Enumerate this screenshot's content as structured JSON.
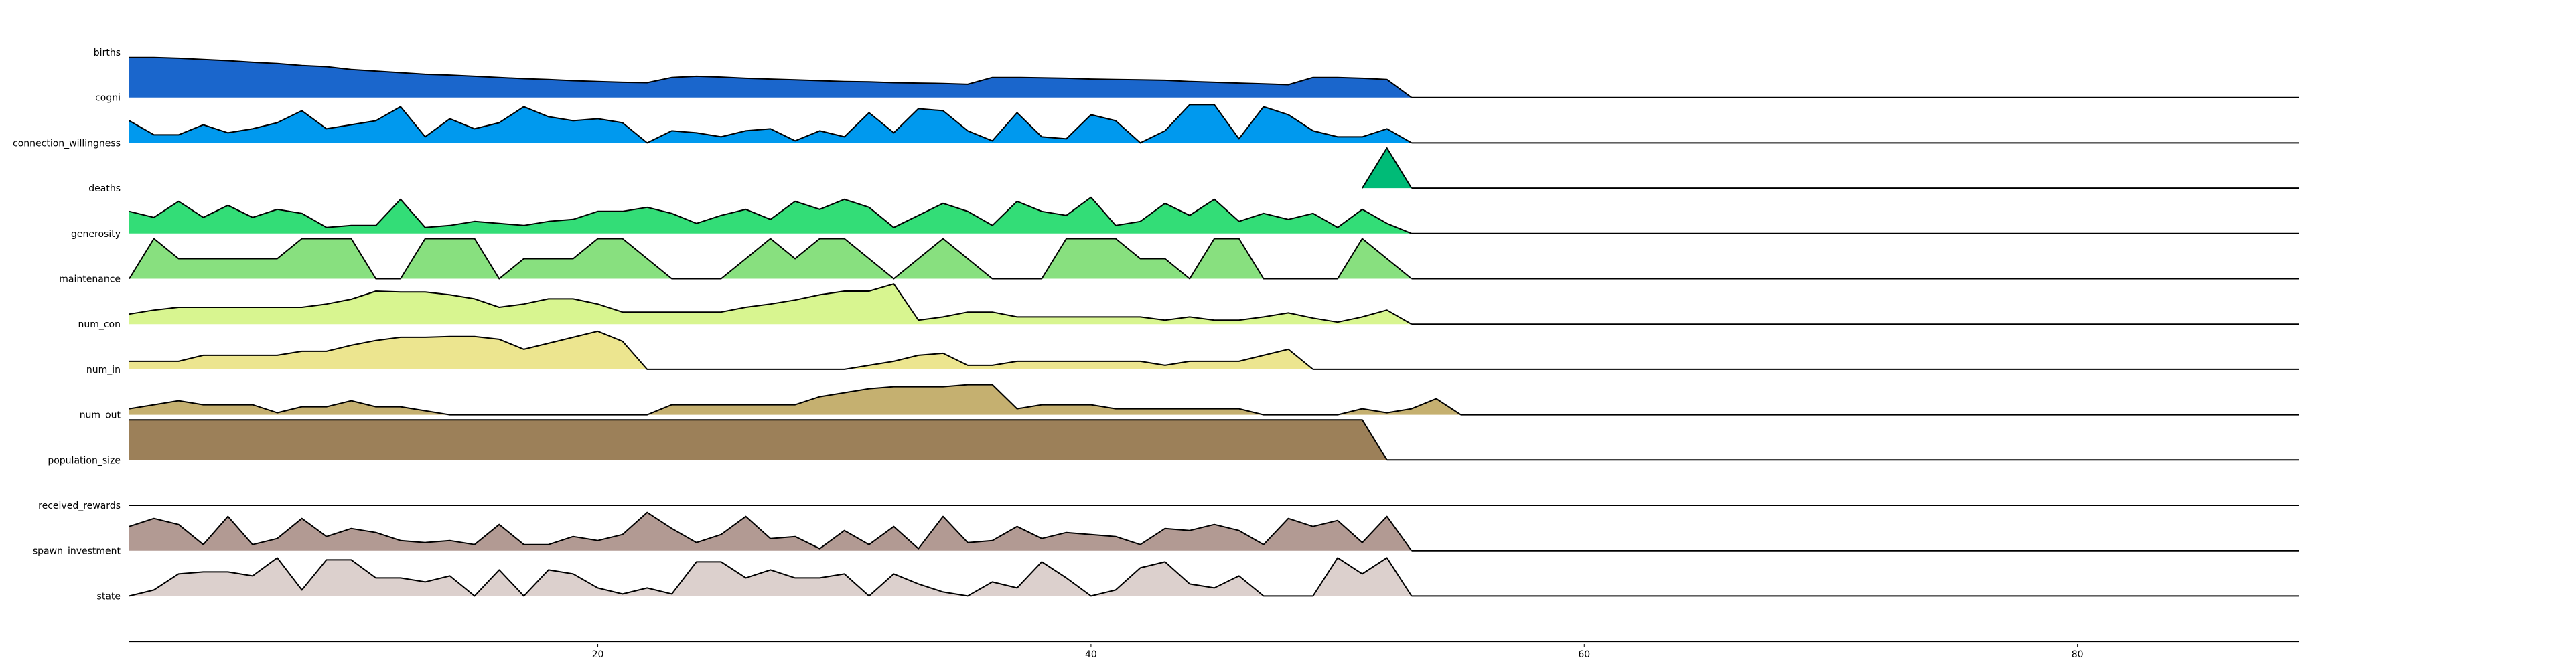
{
  "chart_data": {
    "type": "area",
    "title": "",
    "xlabel": "",
    "ylabel": "",
    "xlim": [
      1,
      89
    ],
    "x_ticks": [
      20,
      40,
      60,
      80
    ],
    "grid": false,
    "legend": "none",
    "series": [
      {
        "name": "births",
        "color": "#1a66cc",
        "x_start": 1,
        "values": [
          1.0,
          1.0,
          0.98,
          0.95,
          0.92,
          0.88,
          0.85,
          0.8,
          0.77,
          0.7,
          0.66,
          0.62,
          0.58,
          0.56,
          0.53,
          0.5,
          0.47,
          0.45,
          0.42,
          0.4,
          0.38,
          0.37,
          0.5,
          0.53,
          0.51,
          0.48,
          0.46,
          0.44,
          0.42,
          0.4,
          0.39,
          0.37,
          0.36,
          0.35,
          0.33,
          0.5,
          0.5,
          0.49,
          0.48,
          0.46,
          0.45,
          0.44,
          0.43,
          0.4,
          0.38,
          0.36,
          0.34,
          0.32,
          0.5,
          0.5,
          0.48,
          0.45,
          0.0
        ]
      },
      {
        "name": "cogni",
        "color": "#0099ee",
        "x_start": 1,
        "values": [
          0.55,
          0.2,
          0.2,
          0.45,
          0.25,
          0.35,
          0.5,
          0.8,
          0.35,
          0.45,
          0.55,
          0.9,
          0.15,
          0.6,
          0.35,
          0.5,
          0.9,
          0.65,
          0.55,
          0.6,
          0.5,
          0.0,
          0.3,
          0.25,
          0.15,
          0.3,
          0.35,
          0.05,
          0.3,
          0.15,
          0.75,
          0.25,
          0.85,
          0.8,
          0.3,
          0.05,
          0.75,
          0.15,
          0.1,
          0.7,
          0.55,
          0.0,
          0.3,
          0.95,
          0.95,
          0.1,
          0.9,
          0.7,
          0.3,
          0.15,
          0.15,
          0.35,
          0.0
        ]
      },
      {
        "name": "connection_willingness",
        "color": "#00bb77",
        "x_start": 51,
        "values": [
          0.0,
          1.0,
          0.0
        ]
      },
      {
        "name": "deaths",
        "color": "#33dd77",
        "x_start": 1,
        "values": [
          0.55,
          0.4,
          0.8,
          0.4,
          0.7,
          0.4,
          0.6,
          0.5,
          0.15,
          0.2,
          0.2,
          0.85,
          0.15,
          0.2,
          0.3,
          0.25,
          0.2,
          0.3,
          0.35,
          0.55,
          0.55,
          0.65,
          0.5,
          0.25,
          0.45,
          0.6,
          0.35,
          0.8,
          0.6,
          0.85,
          0.65,
          0.15,
          0.45,
          0.75,
          0.55,
          0.2,
          0.8,
          0.55,
          0.45,
          0.9,
          0.2,
          0.3,
          0.75,
          0.45,
          0.85,
          0.3,
          0.5,
          0.35,
          0.5,
          0.15,
          0.6,
          0.25,
          0.0
        ]
      },
      {
        "name": "generosity",
        "color": "#88e07f",
        "x_start": 1,
        "values": [
          0.0,
          1.0,
          0.5,
          0.5,
          0.5,
          0.5,
          0.5,
          1.0,
          1.0,
          1.0,
          0.0,
          0.0,
          1.0,
          1.0,
          1.0,
          0.0,
          0.5,
          0.5,
          0.5,
          1.0,
          1.0,
          0.5,
          0.0,
          0.0,
          0.0,
          0.5,
          1.0,
          0.5,
          1.0,
          1.0,
          0.5,
          0.0,
          0.5,
          1.0,
          0.5,
          0.0,
          0.0,
          0.0,
          1.0,
          1.0,
          1.0,
          0.5,
          0.5,
          0.0,
          1.0,
          1.0,
          0.0,
          0.0,
          0.0,
          0.0,
          1.0,
          0.5,
          0.0
        ]
      },
      {
        "name": "maintenance",
        "color": "#d8f590",
        "x_start": 1,
        "values": [
          0.25,
          0.35,
          0.42,
          0.42,
          0.42,
          0.42,
          0.42,
          0.42,
          0.5,
          0.62,
          0.82,
          0.8,
          0.8,
          0.73,
          0.63,
          0.42,
          0.5,
          0.63,
          0.63,
          0.5,
          0.3,
          0.3,
          0.3,
          0.3,
          0.3,
          0.42,
          0.5,
          0.6,
          0.73,
          0.82,
          0.82,
          1.0,
          0.1,
          0.18,
          0.3,
          0.3,
          0.18,
          0.18,
          0.18,
          0.18,
          0.18,
          0.18,
          0.1,
          0.18,
          0.1,
          0.1,
          0.18,
          0.28,
          0.15,
          0.05,
          0.18,
          0.35,
          0.0
        ]
      },
      {
        "name": "num_con",
        "color": "#ece58f",
        "x_start": 1,
        "values": [
          0.2,
          0.2,
          0.2,
          0.35,
          0.35,
          0.35,
          0.35,
          0.45,
          0.45,
          0.6,
          0.72,
          0.8,
          0.8,
          0.82,
          0.82,
          0.75,
          0.5,
          0.65,
          0.8,
          0.95,
          0.7,
          0.0,
          0.0,
          0.0,
          0.0,
          0.0,
          0.0,
          0.0,
          0.0,
          0.0,
          0.1,
          0.2,
          0.35,
          0.4,
          0.1,
          0.1,
          0.2,
          0.2,
          0.2,
          0.2,
          0.2,
          0.2,
          0.1,
          0.2,
          0.2,
          0.2,
          0.35,
          0.5,
          0.0
        ]
      },
      {
        "name": "num_in",
        "color": "#c5b070",
        "x_start": 1,
        "values": [
          0.15,
          0.25,
          0.35,
          0.25,
          0.25,
          0.25,
          0.05,
          0.2,
          0.2,
          0.35,
          0.2,
          0.2,
          0.1,
          0.0,
          0.0,
          0.0,
          0.0,
          0.0,
          0.0,
          0.0,
          0.0,
          0.0,
          0.25,
          0.25,
          0.25,
          0.25,
          0.25,
          0.25,
          0.45,
          0.55,
          0.65,
          0.7,
          0.7,
          0.7,
          0.75,
          0.75,
          0.15,
          0.25,
          0.25,
          0.25,
          0.15,
          0.15,
          0.15,
          0.15,
          0.15,
          0.15,
          0.0,
          0.0,
          0.0,
          0.0,
          0.15,
          0.05,
          0.15,
          0.4,
          0.0
        ]
      },
      {
        "name": "num_out",
        "color": "#9c8059",
        "x_start": 1,
        "values": [
          1.0,
          1.0,
          1.0,
          1.0,
          1.0,
          1.0,
          1.0,
          1.0,
          1.0,
          1.0,
          1.0,
          1.0,
          1.0,
          1.0,
          1.0,
          1.0,
          1.0,
          1.0,
          1.0,
          1.0,
          1.0,
          1.0,
          1.0,
          1.0,
          1.0,
          1.0,
          1.0,
          1.0,
          1.0,
          1.0,
          1.0,
          1.0,
          1.0,
          1.0,
          1.0,
          1.0,
          1.0,
          1.0,
          1.0,
          1.0,
          1.0,
          1.0,
          1.0,
          1.0,
          1.0,
          1.0,
          1.0,
          1.0,
          1.0,
          1.0,
          1.0,
          0.0
        ]
      },
      {
        "name": "population_size",
        "color": "#b29a93",
        "x_start": 1,
        "values": []
      },
      {
        "name": "received_rewards",
        "color": "#b29a93",
        "x_start": 1,
        "values": [
          0.6,
          0.8,
          0.65,
          0.15,
          0.85,
          0.15,
          0.3,
          0.8,
          0.35,
          0.55,
          0.45,
          0.25,
          0.2,
          0.25,
          0.15,
          0.65,
          0.15,
          0.15,
          0.35,
          0.25,
          0.4,
          0.95,
          0.55,
          0.2,
          0.4,
          0.85,
          0.3,
          0.35,
          0.05,
          0.5,
          0.15,
          0.6,
          0.05,
          0.85,
          0.2,
          0.25,
          0.6,
          0.3,
          0.45,
          0.4,
          0.35,
          0.15,
          0.55,
          0.5,
          0.65,
          0.5,
          0.15,
          0.8,
          0.6,
          0.75,
          0.2,
          0.85,
          0.0
        ]
      },
      {
        "name": "spawn_investment",
        "color": "#dcd0cd",
        "x_start": 1,
        "values": [
          0.0,
          0.15,
          0.55,
          0.6,
          0.6,
          0.5,
          0.95,
          0.15,
          0.9,
          0.9,
          0.45,
          0.45,
          0.35,
          0.5,
          0.0,
          0.65,
          0.0,
          0.65,
          0.55,
          0.2,
          0.05,
          0.2,
          0.05,
          0.85,
          0.85,
          0.45,
          0.65,
          0.45,
          0.45,
          0.55,
          0.0,
          0.55,
          0.3,
          0.1,
          0.0,
          0.35,
          0.2,
          0.85,
          0.45,
          0.0,
          0.15,
          0.7,
          0.85,
          0.3,
          0.2,
          0.5,
          0.0,
          0.0,
          0.0,
          0.95,
          0.55,
          0.95,
          0.0
        ]
      },
      {
        "name": "state",
        "color": "#dcd0cd",
        "x_start": 1,
        "values": []
      }
    ]
  }
}
